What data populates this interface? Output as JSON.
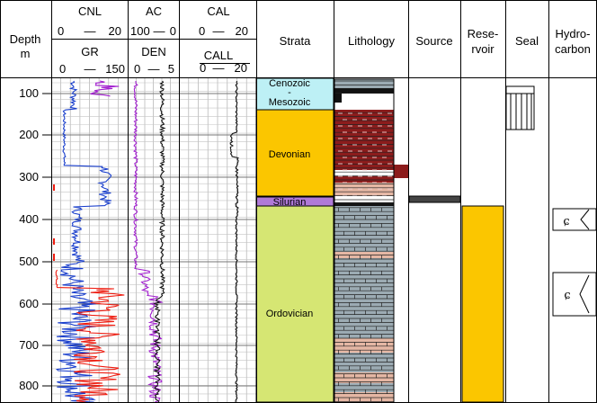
{
  "header": {
    "depth_title": "Depth",
    "depth_unit": "m",
    "track1": {
      "top_name": "CNL",
      "top_scale_left": "0",
      "top_scale_right": "20",
      "bottom_name": "GR",
      "bottom_scale_left": "0",
      "bottom_scale_right": "150"
    },
    "track2": {
      "top_name": "AC",
      "top_scale_left": "100",
      "top_scale_right": "0",
      "bottom_name": "DEN",
      "bottom_scale_left": "0",
      "bottom_scale_right": "5"
    },
    "track3": {
      "top_name": "CAL",
      "top_scale_left": "0",
      "top_scale_right": "20",
      "bottom_name": "CALL",
      "bottom_scale_left": "0",
      "bottom_scale_right": "20"
    },
    "dash": "—",
    "strata": "Strata",
    "lithology": "Lithology",
    "source": "Source",
    "reservoir_line1": "Rese-",
    "reservoir_line2": "rvoir",
    "seal": "Seal",
    "hydro_line1": "Hydro-",
    "hydro_line2": "carbon"
  },
  "depth_ticks": [
    "100",
    "200",
    "300",
    "400",
    "500",
    "600",
    "700",
    "800"
  ],
  "strata": {
    "cenozoic": "Cenozoic",
    "dash": "-",
    "mesozoic": "Mesozoic",
    "devonian": "Devonian",
    "silurian": "Silurian",
    "ordovician": "Ordovician"
  },
  "hydro_symbols": [
    "ɕ",
    "ɕ"
  ],
  "colors": {
    "cenozoic": "#bdf0f5",
    "devonian": "#fbc600",
    "silurian": "#b07ad8",
    "ordovician": "#d6e673",
    "reservoir": "#fbc600",
    "source": "#444444",
    "gr_curve": "#1a3fcc",
    "cnl_curve": "#ee1c10",
    "den_curve": "#a21fcf",
    "shale": "#8c1c1c",
    "sand": "#e5b7a4",
    "mudstone": "#9cabb3"
  }
}
